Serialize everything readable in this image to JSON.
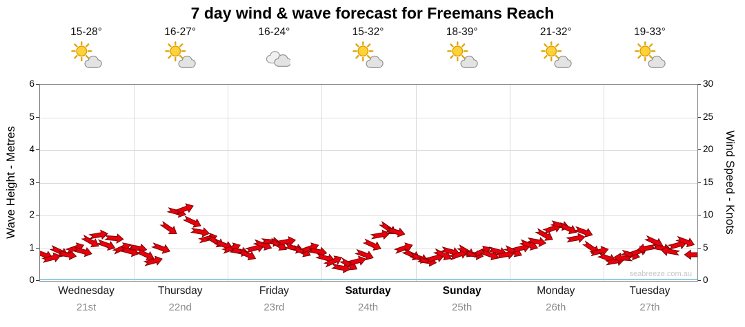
{
  "title": "7 day wind & wave forecast for Freemans Reach",
  "watermark": "seabreeze.com.au",
  "days": [
    {
      "name": "Wednesday",
      "date": "21st",
      "temp": "15-28°",
      "icon": "partly-cloudy",
      "weekend": false
    },
    {
      "name": "Thursday",
      "date": "22nd",
      "temp": "16-27°",
      "icon": "partly-cloudy",
      "weekend": false
    },
    {
      "name": "Friday",
      "date": "23rd",
      "temp": "16-24°",
      "icon": "cloudy",
      "weekend": false
    },
    {
      "name": "Saturday",
      "date": "24th",
      "temp": "15-32°",
      "icon": "partly-cloudy",
      "weekend": true
    },
    {
      "name": "Sunday",
      "date": "25th",
      "temp": "18-39°",
      "icon": "partly-cloudy",
      "weekend": true
    },
    {
      "name": "Monday",
      "date": "26th",
      "temp": "21-32°",
      "icon": "partly-cloudy",
      "weekend": false
    },
    {
      "name": "Tuesday",
      "date": "27th",
      "temp": "19-33°",
      "icon": "partly-cloudy",
      "weekend": false
    }
  ],
  "left_axis": {
    "title": "Wave Height - Metres",
    "ticks": [
      0,
      1,
      2,
      3,
      4,
      5,
      6
    ],
    "max": 6
  },
  "right_axis": {
    "title": "Wind Speed - Knots",
    "ticks": [
      0,
      5,
      10,
      15,
      20,
      25,
      30
    ],
    "max": 30
  },
  "colors": {
    "arrow": "#e8000d",
    "arrow_outline": "#7a0000",
    "grid": "#dcdcdc",
    "water_line": "#8ed0ea",
    "date_text": "#8a8a8a"
  },
  "chart_data": {
    "type": "scatter",
    "title": "7 day wind & wave forecast for Freemans Reach",
    "x_categories": [
      "Wednesday 21st",
      "Thursday 22nd",
      "Friday 23rd",
      "Saturday 24th",
      "Sunday 25th",
      "Monday 26th",
      "Tuesday 27th"
    ],
    "ylabel_left": "Wave Height - Metres",
    "ylim_left": [
      0,
      6
    ],
    "ylabel_right": "Wind Speed - Knots",
    "ylim_right": [
      0,
      30
    ],
    "grid": true,
    "samples_per_day": 12,
    "series": [
      {
        "name": "Wind speed (knots), drawn as red wind-direction arrows",
        "marker": "arrow",
        "color": "#e8000d",
        "wind_knots": [
          4,
          3.5,
          4.5,
          4,
          5,
          4.5,
          6,
          7,
          5.5,
          6.5,
          5,
          4.5,
          5,
          4,
          3,
          5,
          8,
          10.5,
          11,
          9,
          7.5,
          6.5,
          6,
          5.5,
          5,
          4.5,
          4,
          5,
          5.5,
          6,
          5.5,
          6,
          5,
          4.5,
          5,
          4.5,
          3.5,
          3,
          2,
          2.5,
          3,
          4,
          5.5,
          7,
          8,
          7.5,
          5,
          4,
          3.5,
          3,
          3.5,
          4,
          4.5,
          4,
          4.5,
          4,
          4.5,
          4,
          4.5,
          4,
          4.5,
          5,
          5.5,
          6,
          7,
          8,
          8.5,
          8,
          6.5,
          7.5,
          5,
          4.5,
          3.5,
          3,
          3.5,
          4,
          4.5,
          5,
          6,
          5,
          4.5,
          5.5,
          6,
          4
        ],
        "wind_dir_deg": [
          20,
          -15,
          25,
          10,
          -20,
          15,
          30,
          -10,
          20,
          5,
          -25,
          15,
          10,
          25,
          -15,
          20,
          35,
          15,
          -20,
          25,
          10,
          -15,
          30,
          20,
          -20,
          10,
          25,
          -15,
          20,
          5,
          30,
          -10,
          15,
          25,
          -20,
          10,
          15,
          -25,
          10,
          30,
          -15,
          20,
          25,
          -10,
          35,
          15,
          -20,
          25,
          20,
          10,
          -15,
          25,
          15,
          -20,
          30,
          10,
          -25,
          20,
          15,
          -10,
          25,
          -15,
          20,
          10,
          30,
          -20,
          15,
          25,
          -10,
          20,
          35,
          -15,
          20,
          -10,
          185,
          15,
          -20,
          170,
          25,
          10,
          190,
          -15,
          20,
          180
        ]
      }
    ]
  }
}
